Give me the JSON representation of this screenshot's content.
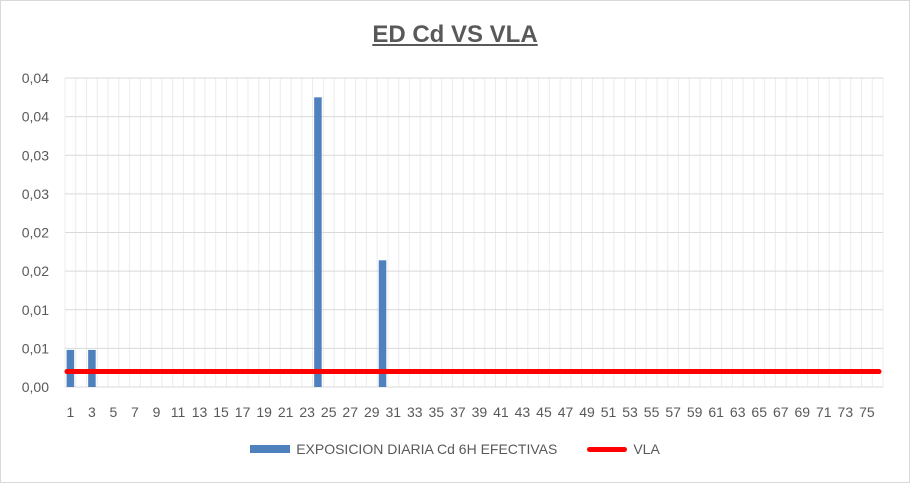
{
  "chart_data": {
    "type": "bar",
    "title": "ED Cd VS VLA",
    "xlabel": "",
    "ylabel": "",
    "ylim": [
      0,
      0.04
    ],
    "y_tick_values": [
      0,
      0.005,
      0.01,
      0.015,
      0.02,
      0.025,
      0.03,
      0.035,
      0.04
    ],
    "y_tick_labels": [
      "0,00",
      "0,01",
      "0,01",
      "0,02",
      "0,02",
      "0,03",
      "0,03",
      "0,04",
      "0,04"
    ],
    "x_tick_labels": [
      "1",
      "3",
      "5",
      "7",
      "9",
      "11",
      "13",
      "15",
      "17",
      "19",
      "21",
      "23",
      "25",
      "27",
      "29",
      "31",
      "33",
      "35",
      "37",
      "39",
      "41",
      "43",
      "45",
      "47",
      "49",
      "51",
      "53",
      "55",
      "57",
      "59",
      "61",
      "63",
      "65",
      "67",
      "69",
      "71",
      "73",
      "75"
    ],
    "categories": [
      1,
      2,
      3,
      4,
      5,
      6,
      7,
      8,
      9,
      10,
      11,
      12,
      13,
      14,
      15,
      16,
      17,
      18,
      19,
      20,
      21,
      22,
      23,
      24,
      25,
      26,
      27,
      28,
      29,
      30,
      31,
      32,
      33,
      34,
      35,
      36,
      37,
      38,
      39,
      40,
      41,
      42,
      43,
      44,
      45,
      46,
      47,
      48,
      49,
      50,
      51,
      52,
      53,
      54,
      55,
      56,
      57,
      58,
      59,
      60,
      61,
      62,
      63,
      64,
      65,
      66,
      67,
      68,
      69,
      70,
      71,
      72,
      73,
      74,
      75,
      76
    ],
    "series": [
      {
        "name": "EXPOSICION DIARIA Cd 6H EFECTIVAS",
        "type": "bar",
        "color": "#4f81bd",
        "values": [
          0.0048,
          0,
          0.0048,
          0,
          0,
          0,
          0,
          0,
          0,
          0,
          0,
          0,
          0,
          0,
          0,
          0,
          0,
          0,
          0,
          0,
          0,
          0,
          0,
          0.0375,
          0,
          0,
          0,
          0,
          0,
          0.0164,
          0,
          0,
          0,
          0,
          0,
          0,
          0,
          0,
          0,
          0,
          0,
          0,
          0,
          0,
          0,
          0,
          0,
          0,
          0,
          0,
          0,
          0,
          0,
          0,
          0,
          0,
          0,
          0,
          0,
          0,
          0,
          0,
          0,
          0,
          0,
          0,
          0,
          0,
          0,
          0,
          0,
          0,
          0,
          0,
          0,
          0
        ]
      },
      {
        "name": "VLA",
        "type": "line",
        "color": "#ff0000",
        "values": [
          0.002,
          0.002,
          0.002,
          0.002,
          0.002,
          0.002,
          0.002,
          0.002,
          0.002,
          0.002,
          0.002,
          0.002,
          0.002,
          0.002,
          0.002,
          0.002,
          0.002,
          0.002,
          0.002,
          0.002,
          0.002,
          0.002,
          0.002,
          0.002,
          0.002,
          0.002,
          0.002,
          0.002,
          0.002,
          0.002,
          0.002,
          0.002,
          0.002,
          0.002,
          0.002,
          0.002,
          0.002,
          0.002,
          0.002,
          0.002,
          0.002,
          0.002,
          0.002,
          0.002,
          0.002,
          0.002,
          0.002,
          0.002,
          0.002,
          0.002,
          0.002,
          0.002,
          0.002,
          0.002,
          0.002,
          0.002,
          0.002,
          0.002,
          0.002,
          0.002,
          0.002,
          0.002,
          0.002,
          0.002,
          0.002,
          0.002,
          0.002,
          0.002,
          0.002,
          0.002,
          0.002,
          0.002,
          0.002,
          0.002,
          0.002,
          0.002
        ]
      }
    ],
    "grid": true,
    "legend": "bottom"
  }
}
